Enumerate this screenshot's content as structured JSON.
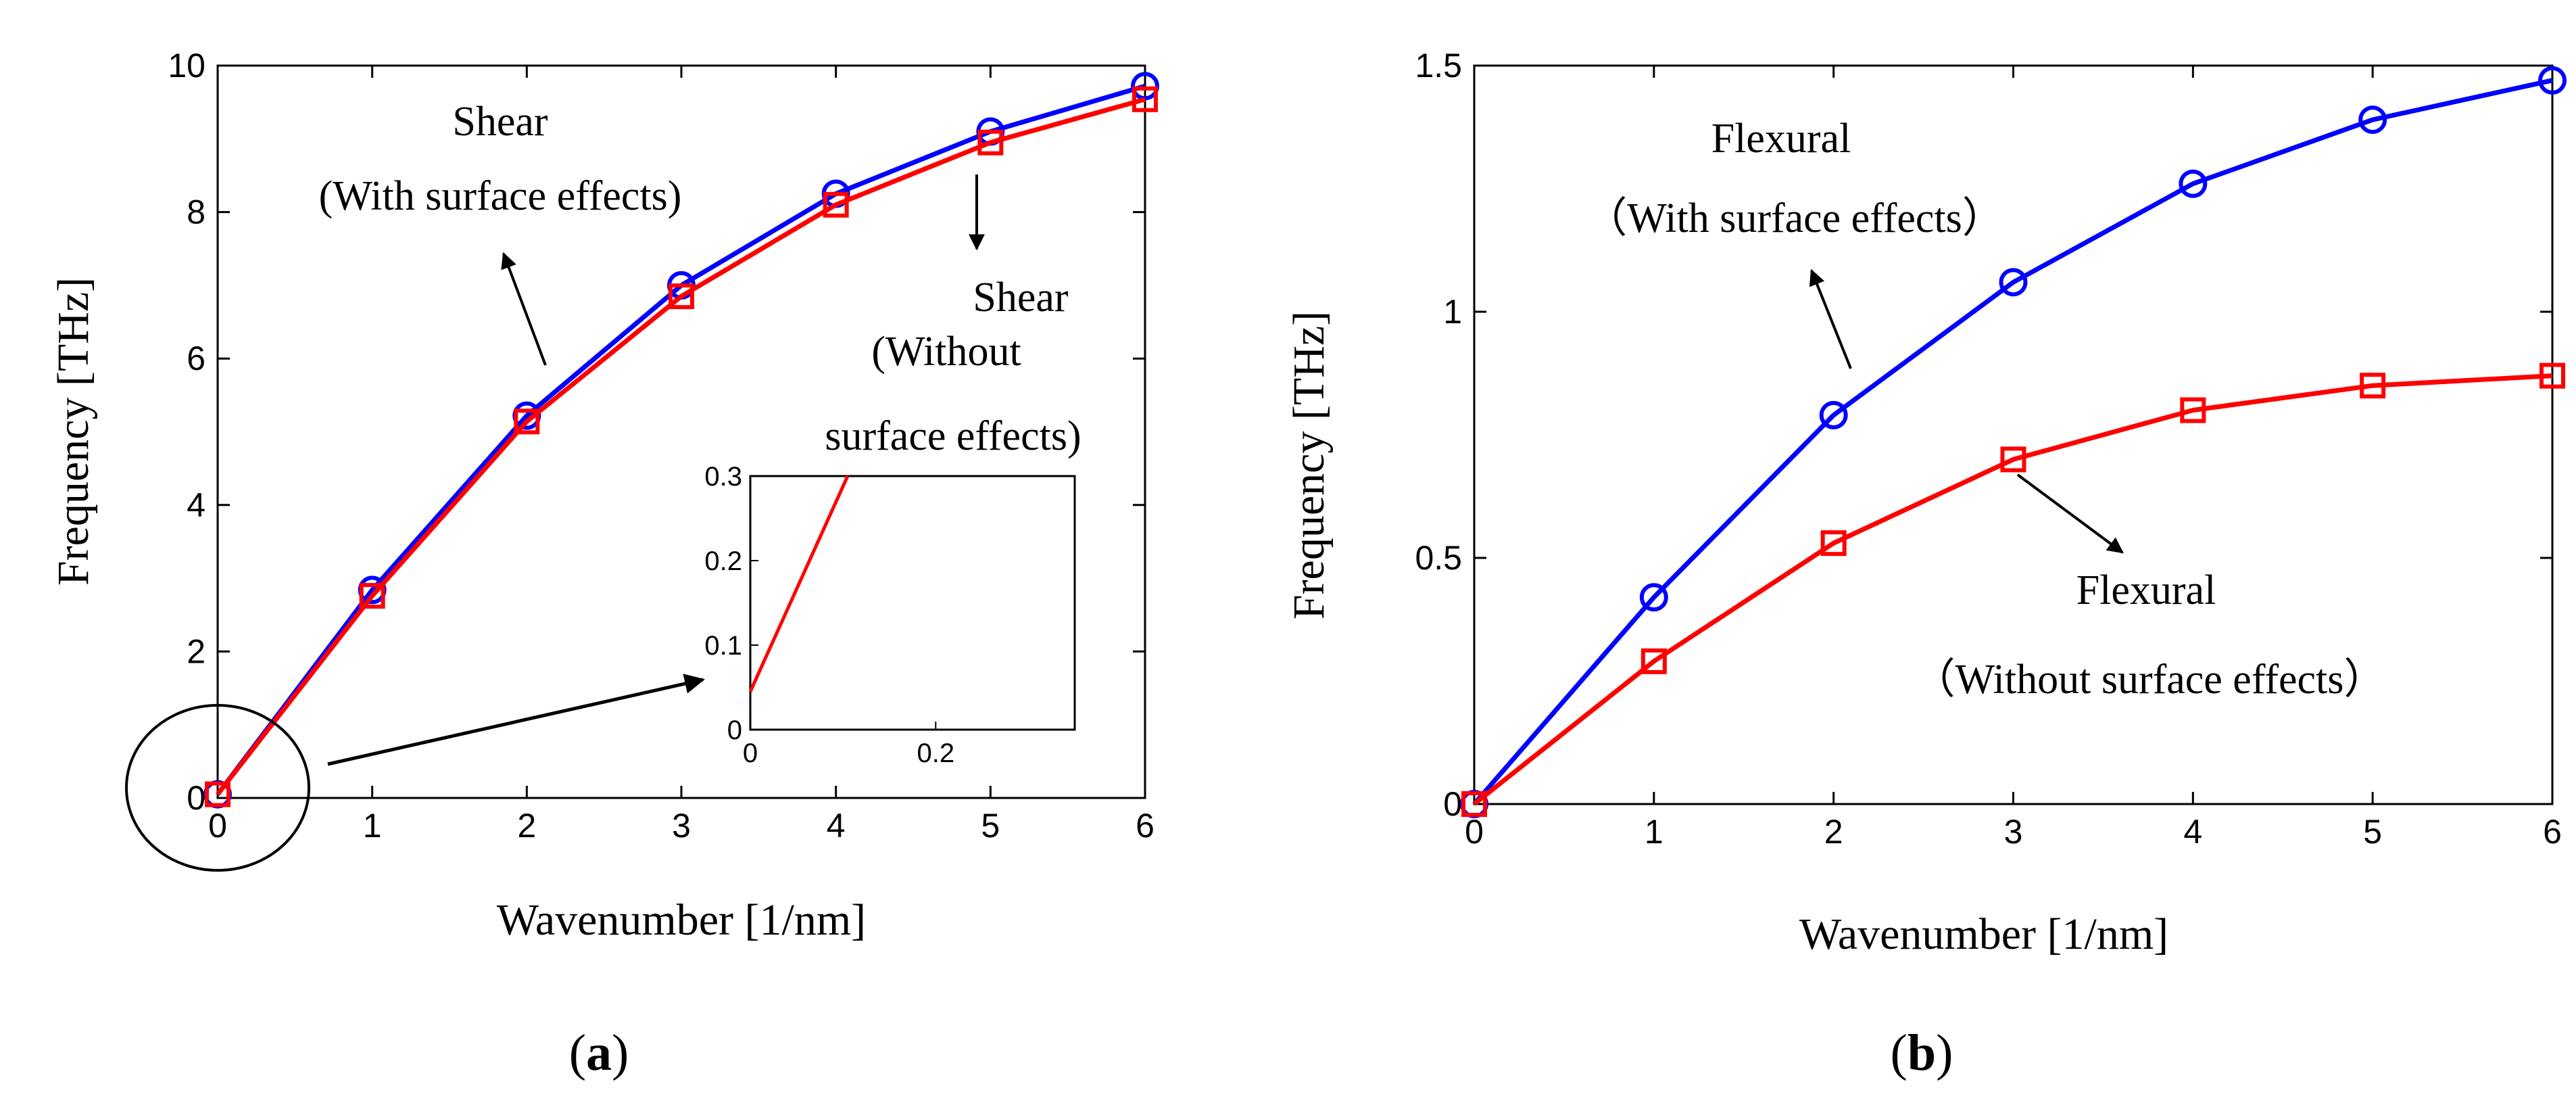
{
  "chart_data": [
    {
      "id": "a",
      "type": "line",
      "caption_open": "(",
      "caption_letter": "a",
      "caption_close": ")",
      "xlabel": "Wavenumber [1/nm]",
      "ylabel": "Frequency [THz]",
      "xlim": [
        0,
        6
      ],
      "ylim": [
        0,
        10
      ],
      "xticks": [
        "0",
        "1",
        "2",
        "3",
        "4",
        "5",
        "6"
      ],
      "yticks": [
        "0",
        "2",
        "4",
        "6",
        "8",
        "10"
      ],
      "x": [
        0,
        1,
        2,
        3,
        4,
        5,
        6
      ],
      "series": [
        {
          "name": "Shear (With surface effects)",
          "color": "#0000ff",
          "marker": "circle",
          "values": [
            0.05,
            2.84,
            5.22,
            7.0,
            8.25,
            9.1,
            9.72
          ]
        },
        {
          "name": "Shear (Without surface effects)",
          "color": "#ff0000",
          "marker": "square",
          "values": [
            0.05,
            2.76,
            5.14,
            6.85,
            8.1,
            8.95,
            9.54
          ]
        }
      ],
      "annotations": {
        "with_line1": "Shear",
        "with_line2": "(With surface effects)",
        "without_line1": "Shear",
        "without_line2": "(Without",
        "without_line3": "surface effects)"
      },
      "inset": {
        "xlim": [
          0,
          0.35
        ],
        "ylim": [
          0,
          0.3
        ],
        "xticks": [
          "0",
          "0.2"
        ],
        "yticks": [
          "0",
          "0.1",
          "0.2",
          "0.3"
        ],
        "line": {
          "color": "#ff0000",
          "x": [
            0,
            0.105
          ],
          "y": [
            0.045,
            0.3
          ]
        }
      }
    },
    {
      "id": "b",
      "type": "line",
      "caption_open": "(",
      "caption_letter": "b",
      "caption_close": ")",
      "xlabel": "Wavenumber [1/nm]",
      "ylabel": "Frequency [THz]",
      "xlim": [
        0,
        6
      ],
      "ylim": [
        0,
        1.5
      ],
      "xticks": [
        "0",
        "1",
        "2",
        "3",
        "4",
        "5",
        "6"
      ],
      "yticks": [
        "0",
        "0.5",
        "1",
        "1.5"
      ],
      "x": [
        0,
        1,
        2,
        3,
        4,
        5,
        6
      ],
      "series": [
        {
          "name": "Flexural (With surface effects)",
          "color": "#0000ff",
          "marker": "circle",
          "values": [
            0,
            0.42,
            0.79,
            1.06,
            1.26,
            1.39,
            1.47
          ]
        },
        {
          "name": "Flexural (Without surface effects)",
          "color": "#ff0000",
          "marker": "square",
          "values": [
            0,
            0.29,
            0.53,
            0.7,
            0.8,
            0.85,
            0.87
          ]
        }
      ],
      "annotations": {
        "with_line1": "Flexural",
        "with_line2": "（With surface effects）",
        "without_line1": "Flexural",
        "without_line2": "（Without surface effects）"
      }
    }
  ]
}
